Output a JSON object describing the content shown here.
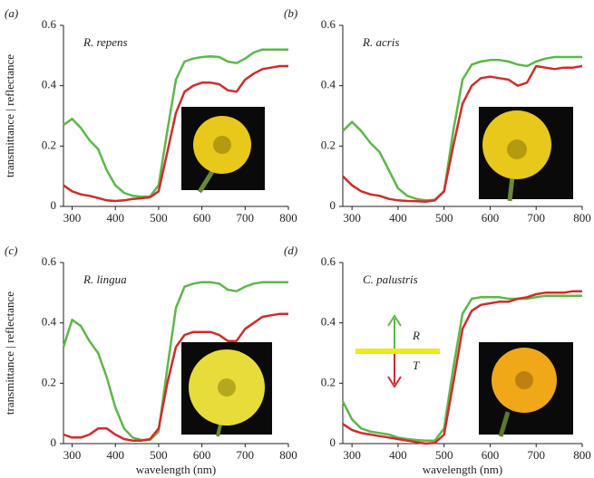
{
  "chart_data": [
    {
      "type": "line",
      "panel_label": "(a)",
      "title": "R. repens",
      "ylabel": "transmittance | reflectance",
      "x": [
        280,
        300,
        320,
        340,
        360,
        380,
        400,
        420,
        440,
        460,
        480,
        500,
        520,
        540,
        560,
        580,
        600,
        620,
        640,
        660,
        680,
        700,
        720,
        740,
        760,
        780,
        800
      ],
      "series": [
        {
          "color": "#5cb848",
          "values": [
            0.27,
            0.29,
            0.26,
            0.22,
            0.19,
            0.12,
            0.07,
            0.045,
            0.035,
            0.032,
            0.033,
            0.07,
            0.25,
            0.42,
            0.48,
            0.49,
            0.495,
            0.497,
            0.495,
            0.48,
            0.475,
            0.49,
            0.51,
            0.52,
            0.52,
            0.52,
            0.52
          ]
        },
        {
          "color": "#d42a2a",
          "values": [
            0.07,
            0.05,
            0.04,
            0.035,
            0.028,
            0.02,
            0.018,
            0.02,
            0.025,
            0.027,
            0.03,
            0.05,
            0.18,
            0.31,
            0.38,
            0.4,
            0.41,
            0.41,
            0.405,
            0.385,
            0.38,
            0.42,
            0.44,
            0.455,
            0.46,
            0.465,
            0.465
          ]
        }
      ],
      "xlim": [
        280,
        800
      ],
      "ylim": [
        0,
        0.6
      ],
      "xticks": [
        300,
        400,
        500,
        600,
        700,
        800
      ],
      "yticks": [
        0,
        0.2,
        0.4,
        0.6
      ]
    },
    {
      "type": "line",
      "panel_label": "(b)",
      "title": "R. acris",
      "x": [
        280,
        300,
        320,
        340,
        360,
        380,
        400,
        420,
        440,
        460,
        480,
        500,
        520,
        540,
        560,
        580,
        600,
        620,
        640,
        660,
        680,
        700,
        720,
        740,
        760,
        780,
        800
      ],
      "series": [
        {
          "color": "#5cb848",
          "values": [
            0.25,
            0.28,
            0.25,
            0.21,
            0.18,
            0.12,
            0.06,
            0.035,
            0.025,
            0.02,
            0.022,
            0.05,
            0.25,
            0.42,
            0.47,
            0.48,
            0.485,
            0.485,
            0.48,
            0.47,
            0.465,
            0.48,
            0.49,
            0.495,
            0.495,
            0.495,
            0.495
          ]
        },
        {
          "color": "#d42a2a",
          "values": [
            0.1,
            0.07,
            0.05,
            0.04,
            0.035,
            0.025,
            0.02,
            0.018,
            0.017,
            0.016,
            0.02,
            0.05,
            0.2,
            0.34,
            0.4,
            0.425,
            0.43,
            0.425,
            0.42,
            0.4,
            0.41,
            0.465,
            0.46,
            0.455,
            0.46,
            0.46,
            0.465
          ]
        }
      ],
      "xlim": [
        280,
        800
      ],
      "ylim": [
        0,
        0.6
      ],
      "xticks": [
        300,
        400,
        500,
        600,
        700,
        800
      ],
      "yticks": [
        0,
        0.2,
        0.4,
        0.6
      ]
    },
    {
      "type": "line",
      "panel_label": "(c)",
      "title": "R. lingua",
      "ylabel": "transmittance | reflectance",
      "xlabel": "wavelength (nm)",
      "x": [
        280,
        300,
        320,
        340,
        360,
        380,
        400,
        420,
        440,
        460,
        480,
        500,
        520,
        540,
        560,
        580,
        600,
        620,
        640,
        660,
        680,
        700,
        720,
        740,
        760,
        780,
        800
      ],
      "series": [
        {
          "color": "#5cb848",
          "values": [
            0.32,
            0.41,
            0.39,
            0.34,
            0.3,
            0.22,
            0.12,
            0.05,
            0.02,
            0.012,
            0.012,
            0.04,
            0.25,
            0.45,
            0.52,
            0.53,
            0.535,
            0.535,
            0.53,
            0.51,
            0.505,
            0.52,
            0.53,
            0.535,
            0.535,
            0.535,
            0.535
          ]
        },
        {
          "color": "#d42a2a",
          "values": [
            0.03,
            0.02,
            0.02,
            0.03,
            0.05,
            0.05,
            0.03,
            0.015,
            0.01,
            0.01,
            0.015,
            0.05,
            0.2,
            0.32,
            0.36,
            0.37,
            0.37,
            0.37,
            0.36,
            0.34,
            0.34,
            0.38,
            0.4,
            0.42,
            0.425,
            0.43,
            0.43
          ]
        }
      ],
      "xlim": [
        280,
        800
      ],
      "ylim": [
        0,
        0.6
      ],
      "xticks": [
        300,
        400,
        500,
        600,
        700,
        800
      ],
      "yticks": [
        0,
        0.2,
        0.4,
        0.6
      ]
    },
    {
      "type": "line",
      "panel_label": "(d)",
      "title": "C. palustris",
      "xlabel": "wavelength (nm)",
      "annotations": [
        "R",
        "T"
      ],
      "x": [
        280,
        300,
        320,
        340,
        360,
        380,
        400,
        420,
        440,
        460,
        480,
        500,
        520,
        540,
        560,
        580,
        600,
        620,
        640,
        660,
        680,
        700,
        720,
        740,
        760,
        780,
        800
      ],
      "series": [
        {
          "color": "#5cb848",
          "values": [
            0.14,
            0.08,
            0.05,
            0.04,
            0.035,
            0.03,
            0.02,
            0.015,
            0.012,
            0.01,
            0.01,
            0.05,
            0.25,
            0.43,
            0.48,
            0.485,
            0.485,
            0.485,
            0.48,
            0.48,
            0.48,
            0.485,
            0.49,
            0.49,
            0.49,
            0.49,
            0.49
          ]
        },
        {
          "color": "#d42a2a",
          "values": [
            0.065,
            0.045,
            0.035,
            0.03,
            0.025,
            0.02,
            0.015,
            0.01,
            0.005,
            0,
            0.002,
            0.03,
            0.2,
            0.38,
            0.44,
            0.46,
            0.465,
            0.47,
            0.47,
            0.48,
            0.485,
            0.495,
            0.5,
            0.5,
            0.5,
            0.505,
            0.505
          ]
        }
      ],
      "xlim": [
        280,
        800
      ],
      "ylim": [
        0,
        0.6
      ],
      "xticks": [
        300,
        400,
        500,
        600,
        700,
        800
      ],
      "yticks": [
        0,
        0.2,
        0.4,
        0.6
      ]
    }
  ]
}
